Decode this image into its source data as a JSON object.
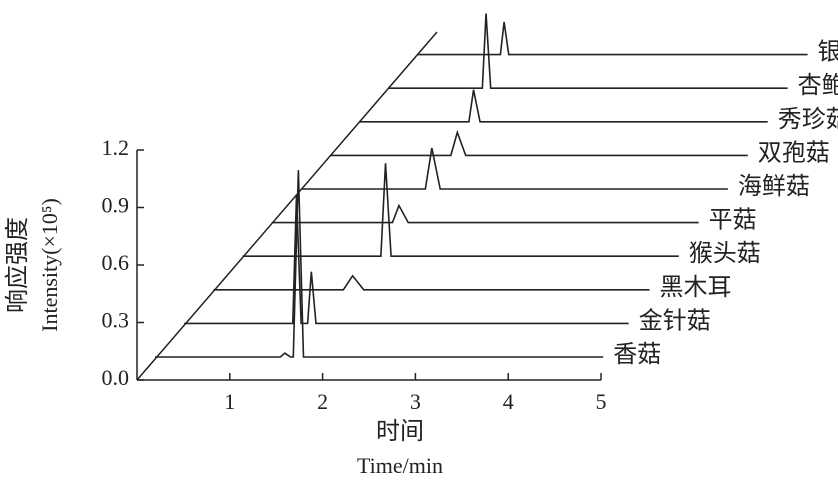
{
  "chart_data": {
    "type": "line",
    "ylabel": "响应强度",
    "ylabel_en": "Intensity(×10⁵)",
    "xlabel": "时间",
    "xlabel_en": "Time/min",
    "xlim": [
      0,
      5
    ],
    "xticks": [
      1,
      2,
      3,
      4,
      5
    ],
    "ylim": [
      0,
      1.2
    ],
    "yticks": [
      {
        "value": 0,
        "label": "0.0"
      },
      0.3,
      0.6,
      0.9,
      1.2
    ],
    "series": [
      {
        "name": "香菇",
        "color": "#222222",
        "x": [
          0,
          1.35,
          1.4,
          1.46,
          1.49,
          1.545,
          1.6,
          1.65,
          4.83
        ],
        "values": [
          0,
          0,
          0.02,
          0,
          0,
          0.975,
          0,
          0,
          0
        ]
      },
      {
        "name": "金针菇",
        "color": "#222222",
        "x": [
          0,
          1.17,
          1.21,
          1.26,
          1.33,
          1.37,
          1.42,
          4.79
        ],
        "values": [
          0,
          0,
          0.67,
          0,
          0,
          0.27,
          0,
          0
        ]
      },
      {
        "name": "黑木耳",
        "color": "#222222",
        "x": [
          0,
          1.4,
          1.5,
          1.62,
          4.7
        ],
        "values": [
          0,
          0,
          0.073,
          0,
          0
        ]
      },
      {
        "name": "猴头菇",
        "color": "#222222",
        "x": [
          0,
          1.49,
          1.54,
          1.6,
          4.7
        ],
        "values": [
          0,
          0,
          0.485,
          0,
          0
        ]
      },
      {
        "name": "平菇",
        "color": "#222222",
        "x": [
          0,
          1.3,
          1.37,
          1.47,
          4.6
        ],
        "values": [
          0,
          0,
          0.089,
          0,
          0
        ]
      },
      {
        "name": "海鲜菇",
        "color": "#222222",
        "x": [
          0,
          1.34,
          1.41,
          1.5,
          4.6
        ],
        "values": [
          0,
          0,
          0.214,
          0,
          0
        ]
      },
      {
        "name": "双孢菇",
        "color": "#222222",
        "x": [
          0,
          1.3,
          1.37,
          1.46,
          4.5
        ],
        "values": [
          0,
          0,
          0.12,
          0,
          0
        ]
      },
      {
        "name": "秀珍菇",
        "color": "#222222",
        "x": [
          0,
          1.18,
          1.23,
          1.3,
          4.4
        ],
        "values": [
          0,
          0,
          0.167,
          0,
          0
        ]
      },
      {
        "name": "杏鲍菇",
        "color": "#222222",
        "x": [
          0,
          1.01,
          1.05,
          1.1,
          4.3
        ],
        "values": [
          0,
          0,
          0.39,
          0,
          0
        ]
      },
      {
        "name": "银耳",
        "color": "#222222",
        "x": [
          0,
          0.89,
          0.93,
          0.98,
          4.2
        ],
        "values": [
          0,
          0,
          0.17,
          0,
          0
        ]
      }
    ]
  }
}
